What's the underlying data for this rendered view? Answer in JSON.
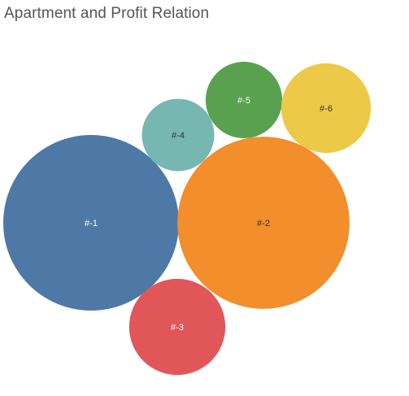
{
  "title": "Apartment and Profit Relation",
  "chart_data": {
    "type": "bubble",
    "title": "Apartment and Profit Relation",
    "legend": "none",
    "grid": false,
    "bubbles": [
      {
        "label": "#-1",
        "value": 100,
        "color": "#4e79a7",
        "label_color": "#ffffff"
      },
      {
        "label": "#-2",
        "value": 96,
        "color": "#f28e2b",
        "label_color": "#333333"
      },
      {
        "label": "#-3",
        "value": 30,
        "color": "#e15759",
        "label_color": "#ffffff"
      },
      {
        "label": "#-4",
        "value": 17,
        "color": "#76b7b2",
        "label_color": "#333333"
      },
      {
        "label": "#-5",
        "value": 19,
        "color": "#59a14f",
        "label_color": "#ffffff"
      },
      {
        "label": "#-6",
        "value": 26,
        "color": "#edc948",
        "label_color": "#333333"
      }
    ]
  }
}
